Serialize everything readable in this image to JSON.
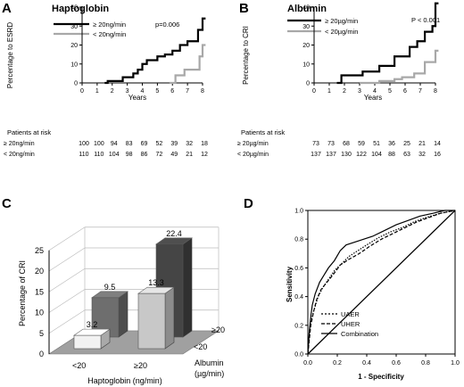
{
  "panel_a": {
    "label": "A",
    "title": "Haptoglobin",
    "p_value": "p=0.006",
    "ylabel": "Percentage to ESRD",
    "xlabel": "Years",
    "risk_header": "Patients at risk",
    "legend": [
      "≥ 20ng/min",
      "< 20ng/min"
    ],
    "risk_rows": [
      {
        "label": "≥ 20ng/min",
        "values": [
          "100",
          "100",
          "94",
          "83",
          "69",
          "52",
          "39",
          "32",
          "18"
        ]
      },
      {
        "label": "< 20ng/min",
        "values": [
          "110",
          "110",
          "104",
          "98",
          "86",
          "72",
          "49",
          "21",
          "12"
        ]
      }
    ]
  },
  "panel_b": {
    "label": "B",
    "title": "Albumin",
    "p_value": "P < 0.001",
    "ylabel": "Percentage to CRI",
    "xlabel": "Years",
    "risk_header": "Patients at risk",
    "legend": [
      "≥ 20µg/min",
      "< 20µg/min"
    ],
    "risk_rows": [
      {
        "label": "≥ 20µg/min",
        "values": [
          "73",
          "73",
          "68",
          "59",
          "51",
          "36",
          "25",
          "21",
          "14"
        ]
      },
      {
        "label": "< 20µg/min",
        "values": [
          "137",
          "137",
          "130",
          "122",
          "104",
          "88",
          "63",
          "32",
          "16"
        ]
      }
    ]
  },
  "panel_c": {
    "label": "C",
    "ylabel": "Percentage of CRI",
    "xlabel": "Haptoglobin (ng/min)",
    "depth_label": "Albumin\n(µg/min)",
    "x_categories": [
      "<20",
      "≥20"
    ],
    "depth_categories": [
      "<20",
      "≥20"
    ],
    "y_ticks": [
      "0",
      "5",
      "10",
      "15",
      "20",
      "25"
    ]
  },
  "panel_d": {
    "label": "D",
    "ylabel": "Sensitivity",
    "xlabel": "1 - Specificity",
    "legend": [
      "UAER",
      "UHER",
      "Combination"
    ]
  },
  "colors": {
    "line_high": "#000000",
    "line_low": "#a8a8a8",
    "bar_front_left": "#f2f2f2",
    "bar_front_right": "#c8c8c8",
    "bar_back_left": "#6e6e6e",
    "bar_back_right": "#454545",
    "floor": "#a0a0a0"
  },
  "chart_data": [
    {
      "type": "line",
      "panel": "A",
      "title": "Haptoglobin",
      "xlabel": "Years",
      "ylabel": "Percentage to ESRD",
      "xlim": [
        0,
        8
      ],
      "ylim": [
        0,
        40
      ],
      "xticks": [
        0,
        1,
        2,
        3,
        4,
        5,
        6,
        7,
        8
      ],
      "yticks": [
        0,
        10,
        20,
        30,
        40
      ],
      "series": [
        {
          "name": "≥ 20ng/min",
          "step": true,
          "x": [
            1.5,
            1.7,
            2.7,
            3.4,
            3.7,
            4.0,
            4.3,
            5.0,
            5.5,
            6.0,
            6.5,
            7.0,
            7.3,
            7.7,
            8.0,
            8.2
          ],
          "y": [
            0,
            1,
            3,
            5,
            7,
            10,
            12,
            14,
            15,
            17,
            20,
            22,
            22,
            28,
            34,
            34
          ]
        },
        {
          "name": "< 20ng/min",
          "step": true,
          "x": [
            5.8,
            6.2,
            6.8,
            7.3,
            7.8,
            8.0,
            8.2
          ],
          "y": [
            0,
            4,
            7,
            7,
            14,
            20,
            20
          ]
        }
      ],
      "annotation": "p=0.006",
      "legend": "top-left"
    },
    {
      "type": "line",
      "panel": "B",
      "title": "Albumin",
      "xlabel": "Years",
      "ylabel": "Percentage to CRI",
      "xlim": [
        0,
        8
      ],
      "ylim": [
        0,
        40
      ],
      "xticks": [
        0,
        1,
        2,
        3,
        4,
        5,
        6,
        7,
        8
      ],
      "yticks": [
        0,
        10,
        20,
        30,
        40
      ],
      "series": [
        {
          "name": "≥ 20µg/min",
          "step": true,
          "x": [
            1.5,
            1.8,
            3.2,
            4.3,
            5.3,
            6.3,
            6.8,
            7.3,
            7.8,
            8.0,
            8.2
          ],
          "y": [
            0,
            4,
            6,
            9,
            14,
            19,
            22,
            27,
            30,
            42,
            42
          ]
        },
        {
          "name": "< 20µg/min",
          "step": true,
          "x": [
            3.0,
            4.3,
            5.3,
            5.8,
            6.6,
            7.3,
            8.0,
            8.2
          ],
          "y": [
            0,
            1,
            2,
            3,
            5,
            11,
            17,
            17
          ]
        }
      ],
      "annotation": "P < 0.001",
      "legend": "top-left"
    },
    {
      "type": "bar",
      "panel": "C",
      "ylabel": "Percentage of CRI",
      "xlabel": "Haptoglobin (ng/min)",
      "categories": [
        "<20",
        "≥20"
      ],
      "ylim": [
        0,
        25
      ],
      "yticks": [
        0,
        5,
        10,
        15,
        20,
        25
      ],
      "series": [
        {
          "name": "<20",
          "values": [
            3.2,
            13.3
          ]
        },
        {
          "name": "≥20",
          "values": [
            9.5,
            22.4
          ]
        }
      ],
      "data_labels": [
        "3.2",
        "13.3",
        "9.5",
        "22.4"
      ]
    },
    {
      "type": "line",
      "panel": "D",
      "xlabel": "1 - Specificity",
      "ylabel": "Sensitivity",
      "xlim": [
        0,
        1
      ],
      "ylim": [
        0,
        1
      ],
      "xticks": [
        0.0,
        0.2,
        0.4,
        0.6,
        0.8,
        1.0
      ],
      "yticks": [
        0.0,
        0.2,
        0.4,
        0.6,
        0.8,
        1.0
      ],
      "series": [
        {
          "name": "UAER",
          "style": "dotted",
          "x": [
            0,
            0.01,
            0.02,
            0.04,
            0.07,
            0.1,
            0.14,
            0.18,
            0.22,
            0.28,
            0.34,
            0.4,
            0.48,
            0.56,
            0.64,
            0.72,
            0.8,
            0.9,
            1.0
          ],
          "y": [
            0,
            0.12,
            0.22,
            0.3,
            0.4,
            0.46,
            0.52,
            0.58,
            0.62,
            0.68,
            0.72,
            0.76,
            0.81,
            0.85,
            0.88,
            0.92,
            0.95,
            0.98,
            1.0
          ]
        },
        {
          "name": "UHER",
          "style": "dashed",
          "x": [
            0,
            0.01,
            0.02,
            0.04,
            0.06,
            0.09,
            0.13,
            0.17,
            0.22,
            0.28,
            0.35,
            0.42,
            0.5,
            0.58,
            0.66,
            0.74,
            0.82,
            0.9,
            1.0
          ],
          "y": [
            0,
            0.1,
            0.2,
            0.3,
            0.38,
            0.45,
            0.5,
            0.55,
            0.62,
            0.66,
            0.7,
            0.75,
            0.8,
            0.84,
            0.88,
            0.92,
            0.95,
            0.98,
            1.0
          ]
        },
        {
          "name": "Combination",
          "style": "solid",
          "x": [
            0,
            0.01,
            0.02,
            0.03,
            0.05,
            0.08,
            0.11,
            0.14,
            0.18,
            0.22,
            0.26,
            0.32,
            0.38,
            0.44,
            0.52,
            0.6,
            0.68,
            0.76,
            0.85,
            0.93,
            1.0
          ],
          "y": [
            0,
            0.16,
            0.26,
            0.34,
            0.42,
            0.5,
            0.55,
            0.6,
            0.65,
            0.72,
            0.76,
            0.78,
            0.8,
            0.82,
            0.86,
            0.9,
            0.93,
            0.96,
            0.98,
            1.0,
            1.0
          ]
        },
        {
          "name": "",
          "style": "reference",
          "x": [
            0,
            1
          ],
          "y": [
            0,
            1
          ]
        }
      ],
      "legend": "bottom-center"
    }
  ]
}
